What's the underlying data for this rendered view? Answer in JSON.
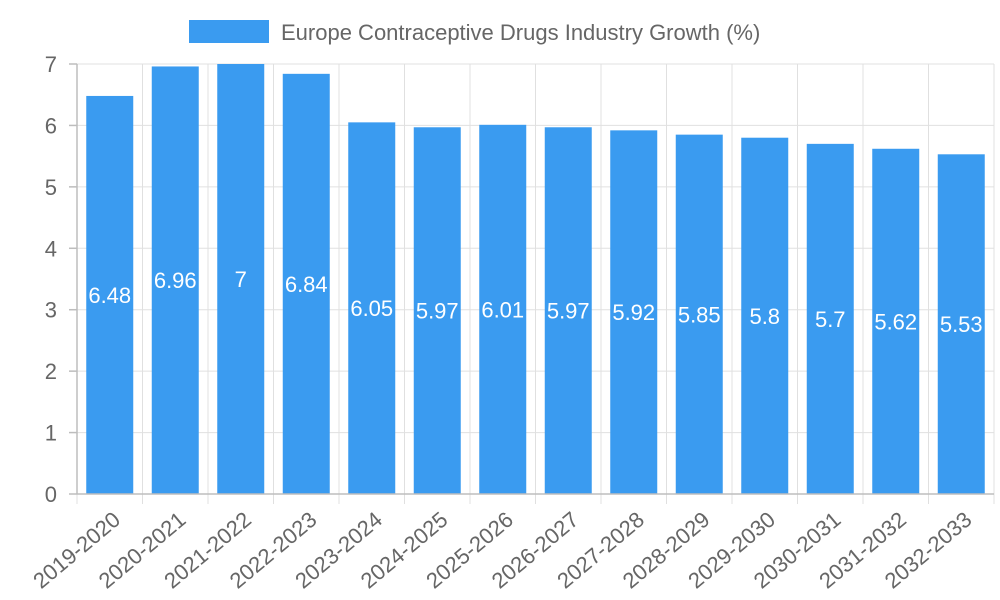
{
  "chart_data": {
    "type": "bar",
    "legend": "Europe Contraceptive Drugs Industry Growth (%)",
    "categories": [
      "2019-2020",
      "2020-2021",
      "2021-2022",
      "2022-2023",
      "2023-2024",
      "2024-2025",
      "2025-2026",
      "2026-2027",
      "2027-2028",
      "2028-2029",
      "2029-2030",
      "2030-2031",
      "2031-2032",
      "2032-2033"
    ],
    "values": [
      6.48,
      6.96,
      7,
      6.84,
      6.05,
      5.97,
      6.01,
      5.97,
      5.92,
      5.85,
      5.8,
      5.7,
      5.62,
      5.53
    ],
    "ylim": [
      0,
      7
    ],
    "yticks": [
      0,
      1,
      2,
      3,
      4,
      5,
      6,
      7
    ],
    "bar_color": "#3a9bf0",
    "grid": true,
    "legend_position": "top-center"
  }
}
